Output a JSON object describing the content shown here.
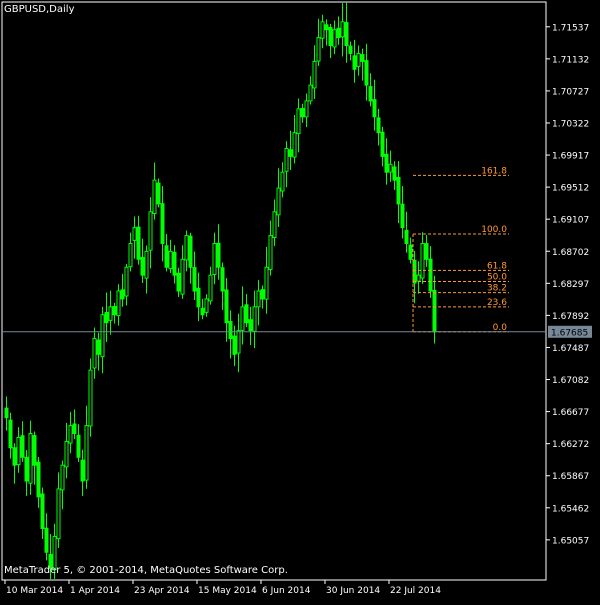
{
  "header": {
    "symbol_label": "GBPUSD,Daily"
  },
  "footer": {
    "copyright": "MetaTrader 5, © 2001-2014, MetaQuotes Software Corp."
  },
  "colors": {
    "background": "#000000",
    "candle": "#00ff00",
    "candle_bull_body": "#000000",
    "text": "#ffffff",
    "fib": "#ff9933",
    "price_line": "#778899",
    "current_price_bg": "#778899"
  },
  "chart_data": {
    "type": "candlestick",
    "symbol": "GBPUSD",
    "timeframe": "Daily",
    "y_axis": {
      "ylim": [
        1.6455,
        1.7185
      ],
      "tick_labels": [
        "1.71537",
        "1.71132",
        "1.70727",
        "1.70322",
        "1.69917",
        "1.69512",
        "1.69107",
        "1.68702",
        "1.68297",
        "1.67892",
        "1.67487",
        "1.67082",
        "1.66677",
        "1.66272",
        "1.65867",
        "1.65462",
        "1.65057"
      ]
    },
    "x_axis": {
      "date_labels": [
        {
          "label": "10 Mar 2014",
          "bar": 0
        },
        {
          "label": "1 Apr 2014",
          "bar": 16
        },
        {
          "label": "23 Apr 2014",
          "bar": 32
        },
        {
          "label": "15 May 2014",
          "bar": 48
        },
        {
          "label": "6 Jun 2014",
          "bar": 64
        },
        {
          "label": "30 Jun 2014",
          "bar": 80
        },
        {
          "label": "22 Jul 2014",
          "bar": 96
        }
      ]
    },
    "current_price": 1.67685,
    "current_price_label": "1.67685",
    "fibonacci": {
      "start_bar": 102,
      "end_bar": 126,
      "levels": [
        {
          "label": "161.8",
          "price": 1.6966
        },
        {
          "label": "100.0",
          "price": 1.6892
        },
        {
          "label": "61.8",
          "price": 1.6846
        },
        {
          "label": "50.0",
          "price": 1.6832
        },
        {
          "label": "38.2",
          "price": 1.6818
        },
        {
          "label": "23.6",
          "price": 1.68
        },
        {
          "label": "0.0",
          "price": 1.67685
        }
      ]
    },
    "closes": [
      1.666,
      1.6622,
      1.66,
      1.6635,
      1.661,
      1.658,
      1.664,
      1.66,
      1.656,
      1.652,
      1.649,
      1.647,
      1.651,
      1.657,
      1.66,
      1.663,
      1.665,
      1.664,
      1.661,
      1.658,
      1.665,
      1.672,
      1.676,
      1.674,
      1.679,
      1.678,
      1.68,
      1.679,
      1.682,
      1.681,
      1.685,
      1.688,
      1.69,
      1.686,
      1.684,
      1.687,
      1.692,
      1.696,
      1.693,
      1.688,
      1.685,
      1.687,
      1.684,
      1.682,
      1.686,
      1.689,
      1.685,
      1.682,
      1.68,
      1.679,
      1.681,
      1.684,
      1.688,
      1.685,
      1.682,
      1.678,
      1.676,
      1.674,
      1.677,
      1.68,
      1.678,
      1.677,
      1.68,
      1.682,
      1.681,
      1.685,
      1.689,
      1.692,
      1.695,
      1.697,
      1.7,
      1.699,
      1.702,
      1.705,
      1.704,
      1.706,
      1.708,
      1.711,
      1.714,
      1.716,
      1.715,
      1.713,
      1.715,
      1.714,
      1.716,
      1.713,
      1.712,
      1.71,
      1.712,
      1.711,
      1.708,
      1.706,
      1.704,
      1.702,
      1.699,
      1.697,
      1.698,
      1.696,
      1.693,
      1.69,
      1.688,
      1.686,
      1.683,
      1.684,
      1.688,
      1.686,
      1.682,
      1.67685
    ]
  }
}
